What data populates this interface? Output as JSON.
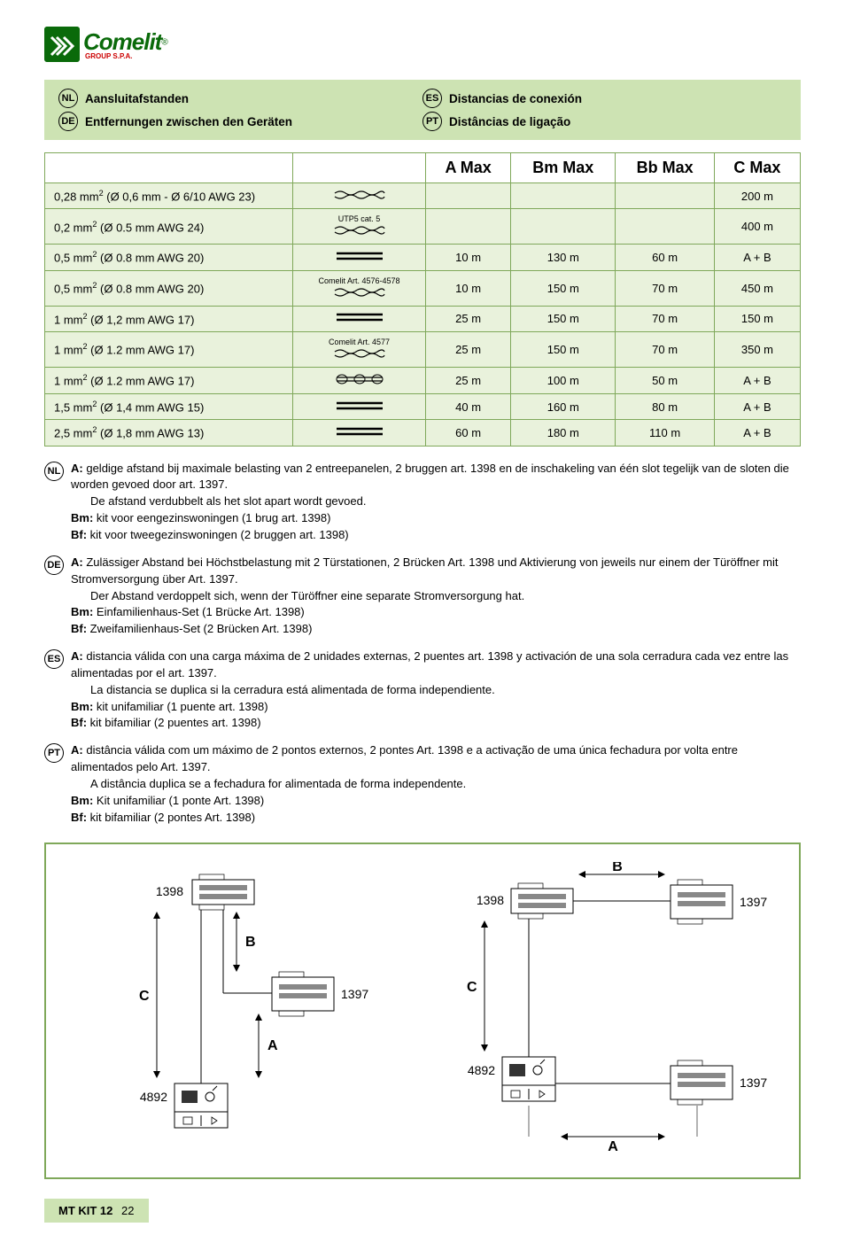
{
  "logo": {
    "brand": "Comelit",
    "sub": "GROUP S.P.A.",
    "reg": "®"
  },
  "titles": {
    "nl": {
      "code": "NL",
      "text": "Aansluitafstanden"
    },
    "es": {
      "code": "ES",
      "text": "Distancias de conexión"
    },
    "de": {
      "code": "DE",
      "text": "Entfernungen zwischen den Geräten"
    },
    "pt": {
      "code": "PT",
      "text": "Distâncias de ligação"
    }
  },
  "table": {
    "headers": {
      "c1": "",
      "c2": "",
      "a": "A Max",
      "bm": "Bm Max",
      "bb": "Bb Max",
      "c": "C Max"
    },
    "rows": [
      {
        "spec": "0,28 mm² (Ø 0,6 mm - Ø 6/10 AWG 23)",
        "cable_label": "",
        "cable_glyph": "twisted",
        "a": "",
        "bm": "",
        "bb": "",
        "c": "200 m"
      },
      {
        "spec": "0,2 mm² (Ø 0.5 mm AWG 24)",
        "cable_label": "UTP5 cat. 5",
        "cable_glyph": "twisted",
        "a": "",
        "bm": "",
        "bb": "",
        "c": "400 m"
      },
      {
        "spec": "0,5 mm² (Ø 0.8 mm AWG 20)",
        "cable_label": "",
        "cable_glyph": "parallel",
        "a": "10 m",
        "bm": "130 m",
        "bb": "60 m",
        "c": "A + B"
      },
      {
        "spec": "0,5 mm² (Ø 0.8 mm AWG 20)",
        "cable_label": "Comelit Art. 4576-4578",
        "cable_glyph": "twisted",
        "a": "10 m",
        "bm": "150 m",
        "bb": "70 m",
        "c": "450 m"
      },
      {
        "spec": "1 mm² (Ø 1,2 mm AWG 17)",
        "cable_label": "",
        "cable_glyph": "parallel",
        "a": "25 m",
        "bm": "150 m",
        "bb": "70 m",
        "c": "150 m"
      },
      {
        "spec": "1 mm² (Ø 1.2 mm AWG 17)",
        "cable_label": "Comelit Art. 4577",
        "cable_glyph": "twisted",
        "a": "25 m",
        "bm": "150 m",
        "bb": "70 m",
        "c": "350 m"
      },
      {
        "spec": "1 mm² (Ø 1.2 mm AWG 17)",
        "cable_label": "",
        "cable_glyph": "shielded",
        "a": "25 m",
        "bm": "100 m",
        "bb": "50 m",
        "c": "A + B"
      },
      {
        "spec": "1,5 mm² (Ø 1,4 mm AWG 15)",
        "cable_label": "",
        "cable_glyph": "parallel",
        "a": "40 m",
        "bm": "160 m",
        "bb": "80 m",
        "c": "A + B"
      },
      {
        "spec": "2,5 mm² (Ø 1,8 mm AWG 13)",
        "cable_label": "",
        "cable_glyph": "parallel",
        "a": "60 m",
        "bm": "180 m",
        "bb": "110 m",
        "c": "A + B"
      }
    ]
  },
  "notes": {
    "nl": {
      "code": "NL",
      "a_label": "A:",
      "a_text": "geldige afstand bij maximale belasting van 2 entreepanelen, 2 bruggen art. 1398 en de inschakeling van één slot tegelijk van de sloten die worden gevoed door art. 1397.",
      "a_sub": "De afstand verdubbelt als het slot apart wordt gevoed.",
      "bm_label": "Bm:",
      "bm_text": "kit voor eengezinswoningen (1 brug art. 1398)",
      "bf_label": "Bf:",
      "bf_text": "kit voor tweegezinswoningen (2 bruggen art. 1398)"
    },
    "de": {
      "code": "DE",
      "a_label": "A:",
      "a_text": "Zulässiger Abstand bei Höchstbelastung mit 2 Türstationen, 2  Brücken Art. 1398  und Aktivierung von jeweils nur einem der Türöffner mit Stromversorgung über Art. 1397.",
      "a_sub": "Der Abstand verdoppelt sich, wenn der Türöffner eine separate Stromversorgung hat.",
      "bm_label": "Bm:",
      "bm_text": "Einfamilienhaus-Set (1 Brücke Art. 1398)",
      "bf_label": "Bf:",
      "bf_text": "Zweifamilienhaus-Set (2 Brücken Art. 1398)"
    },
    "es": {
      "code": "ES",
      "a_label": "A:",
      "a_text": "distancia válida con una carga máxima de 2 unidades externas, 2 puentes art. 1398 y activación de una sola cerradura cada vez entre las alimentadas por el art. 1397.",
      "a_sub": "La distancia se duplica si la cerradura está alimentada de forma independiente.",
      "bm_label": "Bm:",
      "bm_text": "kit unifamiliar (1 puente art. 1398)",
      "bf_label": "Bf:",
      "bf_text": "kit bifamiliar (2 puentes art. 1398)"
    },
    "pt": {
      "code": "PT",
      "a_label": "A:",
      "a_text": "distância válida com um máximo de 2 pontos externos, 2 pontes Art. 1398 e a activação de uma única fechadura por volta entre alimentados pelo Art. 1397.",
      "a_sub": "A distância duplica se a fechadura for alimentada de forma independente.",
      "bm_label": "Bm:",
      "bm_text": "Kit unifamiliar (1 ponte Art. 1398)",
      "bf_label": "Bf:",
      "bf_text": "kit bifamiliar (2 pontes Art. 1398)"
    }
  },
  "diagrams": {
    "left": {
      "dev_top": "1398",
      "dev_mid": "1397",
      "dev_bot": "4892",
      "A": "A",
      "B": "B",
      "C": "C"
    },
    "right": {
      "dev_top_l": "1398",
      "dev_top_r": "1397",
      "dev_bot_l": "4892",
      "dev_bot_r": "1397",
      "A": "A",
      "B": "B",
      "C": "C"
    }
  },
  "footer": {
    "kit": "MT KIT 12",
    "page": "22"
  },
  "colors": {
    "accent": "#cde3b3",
    "border": "#7fa85a",
    "row": "#e9f2dc"
  }
}
